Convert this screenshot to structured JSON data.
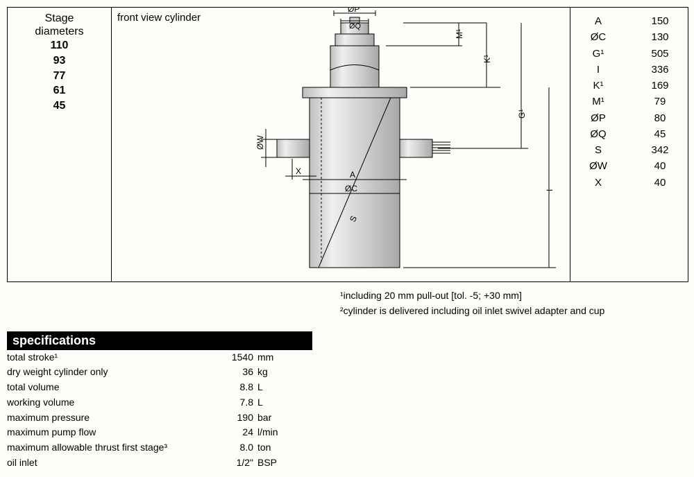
{
  "stage": {
    "header1": "Stage",
    "header2": "diameters",
    "values": [
      "110",
      "93",
      "77",
      "61",
      "45"
    ]
  },
  "drawing": {
    "caption": "front view cylinder",
    "labels": {
      "OP": "ØP",
      "OQ": "ØQ",
      "M1": "M¹",
      "K1": "K¹",
      "G1": "G¹",
      "I": "I",
      "OW": "ØW",
      "X": "X",
      "A": "A",
      "OC": "ØC",
      "S": "S"
    },
    "colors": {
      "fill": "#d9d9d9",
      "fill_light": "#e8e8e8",
      "stroke": "#000000",
      "dim": "#000000"
    }
  },
  "dims": [
    {
      "k": "A",
      "v": "150"
    },
    {
      "k": "ØC",
      "v": "130"
    },
    {
      "k": "G¹",
      "v": "505"
    },
    {
      "k": "I",
      "v": "336"
    },
    {
      "k": "K¹",
      "v": "169"
    },
    {
      "k": "M¹",
      "v": "79"
    },
    {
      "k": "ØP",
      "v": "80"
    },
    {
      "k": "ØQ",
      "v": "45"
    },
    {
      "k": "S",
      "v": "342"
    },
    {
      "k": "ØW",
      "v": "40"
    },
    {
      "k": "X",
      "v": "40"
    }
  ],
  "footnotes": {
    "f1": "¹including 20 mm pull-out [tol. -5; +30 mm]",
    "f2": "²cylinder is delivered including oil inlet swivel adapter and cup"
  },
  "specs": {
    "header": "specifications",
    "rows": [
      {
        "lbl": "total stroke¹",
        "num": "1540",
        "unit": "mm"
      },
      {
        "lbl": "dry weight cylinder only",
        "num": "36",
        "unit": "kg"
      },
      {
        "lbl": "total volume",
        "num": "8.8",
        "unit": "L"
      },
      {
        "lbl": "working volume",
        "num": "7.8",
        "unit": "L"
      },
      {
        "lbl": "maximum pressure",
        "num": "190",
        "unit": "bar"
      },
      {
        "lbl": "maximum pump flow",
        "num": "24",
        "unit": "l/min"
      },
      {
        "lbl": "maximum allowable thrust first stage³",
        "num": "8.0",
        "unit": "ton"
      },
      {
        "lbl": "oil inlet",
        "num": "1/2\"",
        "unit": "BSP"
      }
    ]
  }
}
